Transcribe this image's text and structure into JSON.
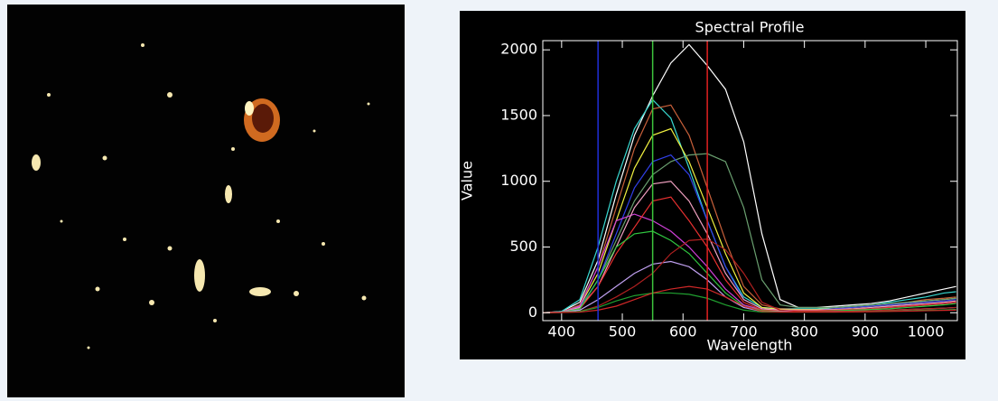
{
  "chart_data": {
    "type": "line",
    "title": "Spectral Profile",
    "x_label": "Wavelength",
    "y_label": "Value",
    "x": [
      370,
      400,
      430,
      460,
      490,
      520,
      550,
      580,
      610,
      640,
      670,
      700,
      730,
      760,
      790,
      820,
      850,
      880,
      910,
      940,
      970,
      1000,
      1030,
      1050
    ],
    "xlim": [
      369,
      1052
    ],
    "ylim": [
      -60,
      2070
    ],
    "xticks": [
      400,
      500,
      600,
      700,
      800,
      900,
      1000
    ],
    "yticks": [
      0,
      500,
      1000,
      1500,
      2000
    ],
    "vlines": [
      {
        "value": 460,
        "color": "#1f2ed6"
      },
      {
        "value": 550,
        "color": "#3cc43c"
      },
      {
        "value": 640,
        "color": "#e02020"
      }
    ],
    "series": [
      {
        "color": "#ffffff",
        "values": [
          0,
          10,
          80,
          400,
          900,
          1350,
          1650,
          1900,
          2040,
          1880,
          1700,
          1300,
          600,
          100,
          40,
          40,
          50,
          60,
          70,
          90,
          120,
          150,
          180,
          200
        ]
      },
      {
        "color": "#38d8d0",
        "values": [
          0,
          10,
          100,
          500,
          1000,
          1400,
          1620,
          1480,
          1100,
          700,
          350,
          120,
          40,
          30,
          30,
          30,
          40,
          50,
          60,
          80,
          100,
          120,
          150,
          160
        ]
      },
      {
        "color": "#c8603a",
        "values": [
          0,
          5,
          60,
          350,
          800,
          1250,
          1550,
          1580,
          1350,
          950,
          550,
          200,
          60,
          30,
          25,
          25,
          30,
          40,
          50,
          60,
          80,
          100,
          110,
          120
        ]
      },
      {
        "color": "#f0f040",
        "values": [
          0,
          5,
          50,
          300,
          700,
          1100,
          1350,
          1400,
          1150,
          800,
          450,
          150,
          40,
          25,
          25,
          25,
          30,
          40,
          50,
          60,
          70,
          90,
          100,
          110
        ]
      },
      {
        "color": "#6aa070",
        "values": [
          0,
          5,
          40,
          250,
          550,
          850,
          1050,
          1150,
          1200,
          1210,
          1150,
          800,
          250,
          60,
          40,
          40,
          40,
          50,
          60,
          70,
          80,
          90,
          100,
          110
        ]
      },
      {
        "color": "#3040e8",
        "values": [
          0,
          5,
          40,
          250,
          600,
          950,
          1150,
          1200,
          1050,
          700,
          350,
          100,
          30,
          20,
          20,
          20,
          30,
          40,
          50,
          60,
          70,
          80,
          90,
          100
        ]
      },
      {
        "color": "#d040d8",
        "values": [
          0,
          5,
          50,
          350,
          700,
          750,
          700,
          620,
          500,
          350,
          180,
          60,
          20,
          15,
          15,
          15,
          20,
          25,
          30,
          40,
          50,
          60,
          70,
          80
        ]
      },
      {
        "color": "#f0a0c0",
        "values": [
          0,
          5,
          40,
          200,
          500,
          800,
          980,
          1000,
          850,
          600,
          300,
          100,
          30,
          20,
          20,
          20,
          25,
          30,
          40,
          50,
          60,
          70,
          80,
          90
        ]
      },
      {
        "color": "#e83030",
        "values": [
          0,
          5,
          30,
          200,
          450,
          650,
          850,
          880,
          700,
          500,
          250,
          80,
          20,
          15,
          15,
          15,
          20,
          25,
          30,
          40,
          50,
          60,
          70,
          80
        ]
      },
      {
        "color": "#30c840",
        "values": [
          0,
          5,
          30,
          250,
          500,
          600,
          620,
          550,
          450,
          300,
          150,
          50,
          15,
          10,
          10,
          10,
          15,
          20,
          25,
          30,
          40,
          50,
          60,
          70
        ]
      },
      {
        "color": "#c0a0f0",
        "values": [
          0,
          5,
          20,
          100,
          200,
          300,
          370,
          390,
          350,
          250,
          120,
          40,
          10,
          8,
          8,
          8,
          10,
          12,
          15,
          20,
          25,
          30,
          35,
          40
        ]
      },
      {
        "color": "#b02020",
        "values": [
          0,
          3,
          10,
          50,
          120,
          200,
          300,
          450,
          550,
          560,
          480,
          300,
          80,
          20,
          10,
          10,
          10,
          12,
          15,
          20,
          25,
          30,
          35,
          40
        ]
      },
      {
        "color": "#20a030",
        "values": [
          0,
          2,
          10,
          40,
          90,
          130,
          150,
          150,
          140,
          110,
          60,
          20,
          5,
          5,
          5,
          5,
          5,
          8,
          10,
          12,
          15,
          20,
          22,
          25
        ]
      },
      {
        "color": "#d02828",
        "values": [
          0,
          2,
          5,
          20,
          50,
          100,
          150,
          180,
          200,
          180,
          120,
          50,
          10,
          5,
          5,
          5,
          5,
          6,
          8,
          10,
          12,
          15,
          18,
          20
        ]
      }
    ]
  }
}
